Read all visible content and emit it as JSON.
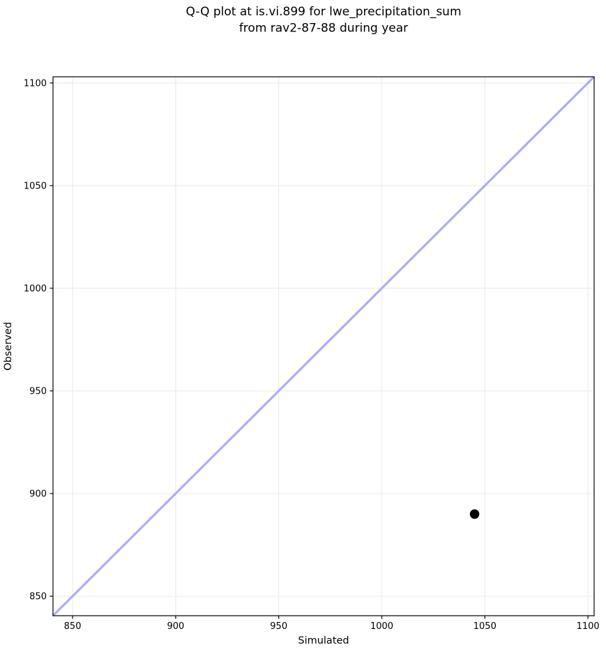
{
  "figure": {
    "title_line1": "Q-Q plot at is.vi.899 for lwe_precipitation_sum",
    "title_line2": "from rav2-87-88 during year"
  },
  "chart_data": {
    "type": "scatter",
    "title": "Q-Q plot at is.vi.899 for lwe_precipitation_sum from rav2-87-88 during year",
    "xlabel": "Simulated",
    "ylabel": "Observed",
    "xlim": [
      840.5,
      1103
    ],
    "ylim": [
      840.5,
      1103
    ],
    "xticks": [
      850,
      900,
      950,
      1000,
      1050,
      1100
    ],
    "yticks": [
      850,
      900,
      950,
      1000,
      1050,
      1100
    ],
    "grid": true,
    "legend": "none",
    "series": [
      {
        "name": "identity-line",
        "kind": "line",
        "color": "#aaaef2",
        "width": 3.2,
        "points": [
          {
            "x": 840.5,
            "y": 840.5
          },
          {
            "x": 1103,
            "y": 1103
          }
        ]
      },
      {
        "name": "quantile-points",
        "kind": "scatter",
        "color": "#000000",
        "marker_radius": 6.8,
        "points": [
          {
            "x": 1045,
            "y": 890
          }
        ]
      }
    ],
    "colors": {
      "grid": "#eeeeee",
      "spine": "#000000",
      "text": "#000000",
      "background": "#ffffff"
    }
  }
}
